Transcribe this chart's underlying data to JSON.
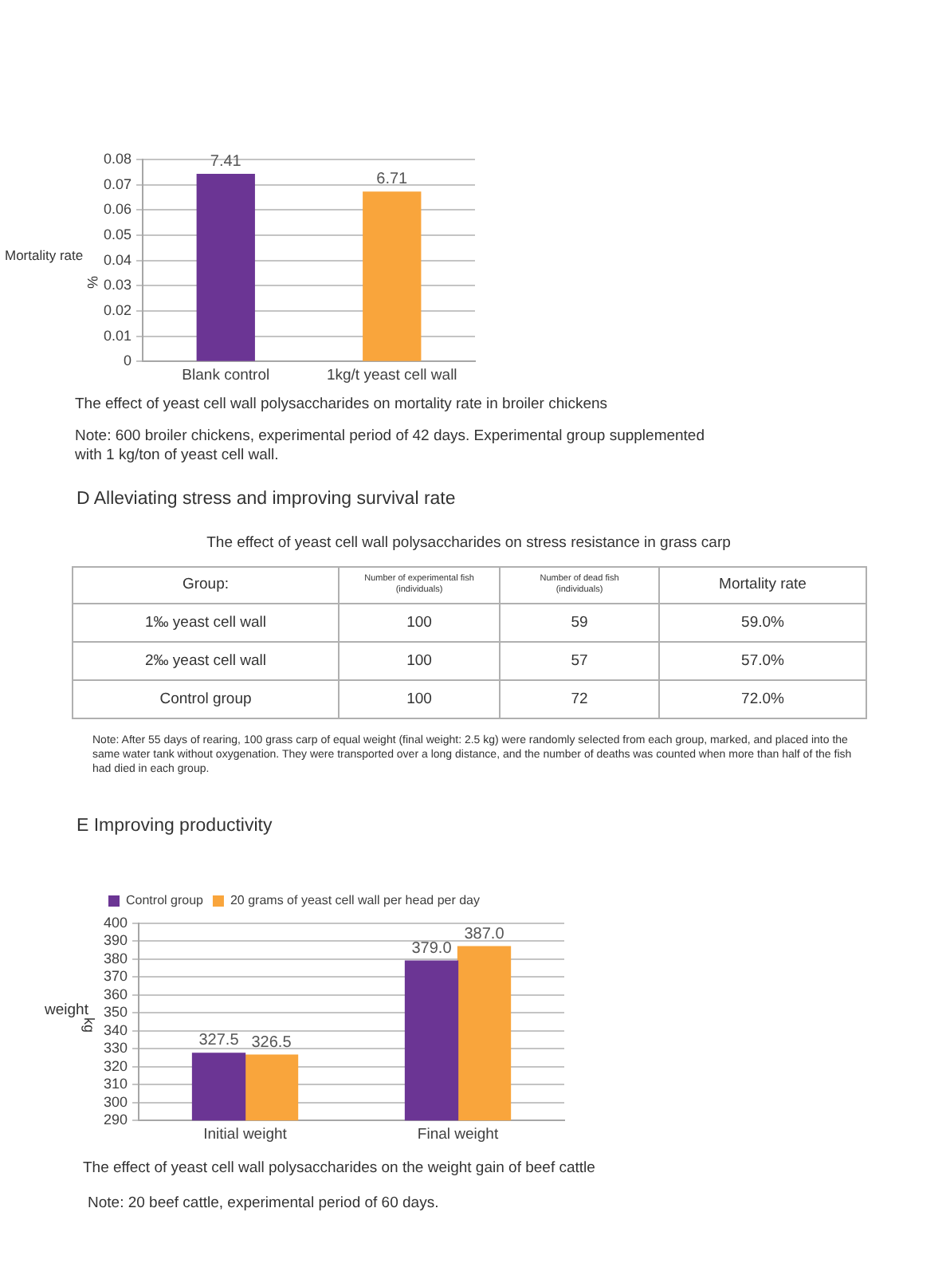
{
  "chart_data": [
    {
      "type": "bar",
      "title": "The effect of yeast cell wall polysaccharides on mortality rate in broiler chickens",
      "ylabel": "Mortality rate",
      "categories": [
        "Blank control",
        "1kg/t yeast cell wall"
      ],
      "values": [
        0.0741,
        0.0671
      ],
      "colors": [
        "#6b3594",
        "#f9a53c"
      ],
      "ylim": [
        0,
        0.08
      ],
      "yticks": [
        0,
        0.01,
        0.02,
        0.03,
        0.04,
        0.05,
        0.06,
        0.07,
        0.08
      ],
      "grid": "y",
      "annotations": [
        "%",
        "Note: 600 broiler chickens, experimental period of 42 days. Experimental group supplemented with 1 kg/ton of yeast cell wall.",
        {
          "text": "7.41",
          "x": "Blank control",
          "y": 0.0741
        },
        {
          "text": "6.71",
          "x": "1kg/t yeast cell wall",
          "y": 0.0671
        }
      ]
    },
    {
      "type": "other",
      "title": "D Alleviating stress and improving survival rate",
      "subtitle": "The effect of yeast cell wall polysaccharides on stress resistance in grass carp",
      "xlabel": "Group:",
      "categories": [
        "1‰ yeast cell wall",
        "2‰ yeast cell wall",
        "Control group"
      ],
      "series": [
        {
          "name": "Number of experimental fish (individuals)",
          "values": [
            100,
            100,
            100
          ],
          "value_labels": [
            "100",
            "100",
            "100"
          ]
        },
        {
          "name": "Number of dead fish (individuals)",
          "values": [
            59,
            57,
            72
          ],
          "value_labels": [
            "59",
            "57",
            "72"
          ]
        },
        {
          "name": "Mortality rate",
          "values": [
            59.0,
            57.0,
            72.0
          ],
          "value_labels": [
            "59.0%",
            "57.0%",
            "72.0%"
          ]
        }
      ],
      "annotations": [
        "Note: After 55 days of rearing, 100 grass carp of equal weight (final weight: 2.5 kg) were randomly selected from each group, marked, and placed into the same water tank without oxygenation. They were transported over a long distance, and the number of deaths was counted when more than half of the fish had died in each group."
      ]
    },
    {
      "type": "bar",
      "title": "E Improving productivity",
      "subtitle": "The effect of yeast cell wall polysaccharides on the weight gain of beef cattle",
      "ylabel": "weight",
      "categories": [
        "Initial weight",
        "Final weight"
      ],
      "series": [
        {
          "name": "Control group",
          "color": "#6b3594",
          "values": [
            327.5,
            379.0
          ],
          "value_labels": [
            "327.5",
            "379.0"
          ]
        },
        {
          "name": "20 grams of yeast cell wall per head per day",
          "color": "#f9a53c",
          "values": [
            326.5,
            387.0
          ],
          "value_labels": [
            "326.5",
            "387.0"
          ]
        }
      ],
      "ylim": [
        290,
        400
      ],
      "yticks": [
        290,
        300,
        310,
        320,
        330,
        340,
        350,
        360,
        370,
        380,
        390,
        400
      ],
      "grid": "y",
      "legend": "top left",
      "annotations": [
        "kg",
        "Note: 20 beef cattle, experimental period of 60 days."
      ]
    }
  ]
}
